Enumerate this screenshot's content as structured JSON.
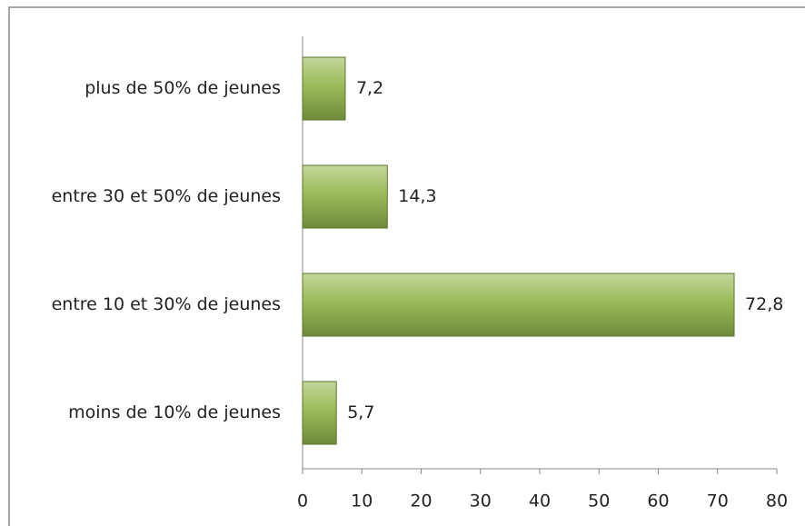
{
  "chart_data": {
    "type": "barh",
    "categories": [
      "plus de 50% de jeunes",
      "entre 30 et 50% de jeunes",
      "entre 10 et 30% de jeunes",
      "moins de 10% de jeunes"
    ],
    "values": [
      7.2,
      14.3,
      72.8,
      5.7
    ],
    "value_labels": [
      "7,2",
      "14,3",
      "72,8",
      "5,7"
    ],
    "color": "#9bbb59",
    "xlim": [
      0,
      80
    ],
    "xticks": [
      0,
      10,
      20,
      30,
      40,
      50,
      60,
      70,
      80
    ],
    "grid": false
  }
}
